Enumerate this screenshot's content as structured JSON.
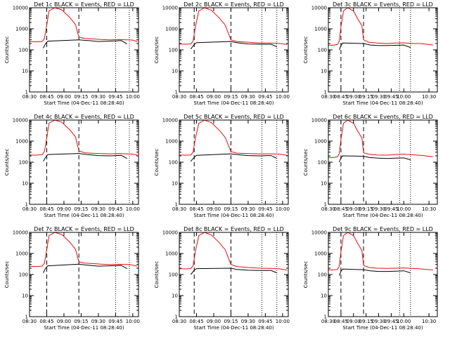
{
  "chart_data": [
    {
      "type": "line",
      "title": "Det 1c BLACK = Events, RED = LLD",
      "xlabel": "Start Time (04-Dec-11 08:28:40)",
      "ylabel": "Counts/sec",
      "yscale": "log",
      "ylim": [
        1,
        10000
      ],
      "xlim": [
        "08:30",
        "10:05"
      ],
      "x_ticks": [
        "08:30",
        "08:45",
        "09:00",
        "09:15",
        "09:30",
        "09:45",
        "10:00"
      ],
      "y_ticks": [
        "1",
        "10",
        "100",
        "1000",
        "10000"
      ],
      "vlines": [
        {
          "x": "08:45",
          "style": "dash"
        },
        {
          "x": "09:13",
          "style": "dash"
        },
        {
          "x": "09:45",
          "style": "dot"
        },
        {
          "x": "09:57",
          "style": "dot"
        }
      ],
      "series": [
        {
          "name": "Events",
          "color": "#000000",
          "x": [
            "08:42",
            "08:44",
            "08:46",
            "09:13",
            "09:20",
            "09:30",
            "09:40",
            "09:50",
            "09:55"
          ],
          "y": [
            120,
            200,
            260,
            300,
            280,
            250,
            260,
            275,
            190
          ]
        },
        {
          "name": "LLD",
          "color": "#e01010",
          "x": [
            "08:30",
            "08:35",
            "08:41",
            "08:43",
            "08:45",
            "08:47",
            "08:52",
            "08:58",
            "09:05",
            "09:10",
            "09:13",
            "09:18",
            "09:25",
            "09:32",
            "09:40",
            "09:48",
            "09:55",
            "10:00",
            "10:04"
          ],
          "y": [
            250,
            240,
            250,
            350,
            1500,
            7000,
            10000,
            8000,
            3500,
            1600,
            400,
            350,
            330,
            310,
            300,
            310,
            300,
            290,
            250
          ]
        }
      ]
    },
    {
      "type": "line",
      "title": "Det 2c BLACK = Events, RED = LLD",
      "xlabel": "Start Time (04-Dec-11 08:28:40)",
      "ylabel": "Counts/sec",
      "yscale": "log",
      "ylim": [
        1,
        10000
      ],
      "xlim": [
        "08:30",
        "10:05"
      ],
      "x_ticks": [
        "08:30",
        "08:45",
        "09:00",
        "09:15",
        "09:30",
        "09:45",
        "10:00"
      ],
      "y_ticks": [
        "1",
        "10",
        "100",
        "1000",
        "10000"
      ],
      "vlines": [
        {
          "x": "08:43",
          "style": "dash"
        },
        {
          "x": "09:15",
          "style": "dash"
        },
        {
          "x": "09:42",
          "style": "dot"
        },
        {
          "x": "09:55",
          "style": "dot"
        }
      ],
      "series": [
        {
          "name": "Events",
          "color": "#000000",
          "x": [
            "08:40",
            "08:43",
            "08:45",
            "09:15",
            "09:20",
            "09:30",
            "09:40",
            "09:50",
            "09:55"
          ],
          "y": [
            110,
            180,
            220,
            250,
            220,
            190,
            185,
            185,
            140
          ]
        },
        {
          "name": "LLD",
          "color": "#e01010",
          "x": [
            "08:30",
            "08:35",
            "08:40",
            "08:42",
            "08:44",
            "08:47",
            "08:52",
            "08:58",
            "09:05",
            "09:10",
            "09:15",
            "09:20",
            "09:30",
            "09:40",
            "09:50",
            "09:58",
            "10:04"
          ],
          "y": [
            190,
            185,
            190,
            260,
            1200,
            7000,
            10000,
            7500,
            3200,
            1500,
            300,
            250,
            230,
            210,
            210,
            200,
            180
          ]
        }
      ]
    },
    {
      "type": "line",
      "title": "Det 3c BLACK = Events, RED = LLD",
      "xlabel": "Start Time (04-Dec-11 08:28:40)",
      "ylabel": "Counts/sec",
      "yscale": "log",
      "ylim": [
        1,
        10000
      ],
      "xlim": [
        "08:30",
        "10:40"
      ],
      "x_ticks": [
        "08:30",
        "08:45",
        "09:00",
        "09:15",
        "09:30",
        "09:45",
        "10:00",
        "10:30"
      ],
      "y_ticks": [
        "1",
        "10",
        "100",
        "1000",
        "10000"
      ],
      "vlines": [
        {
          "x": "08:45",
          "style": "dash"
        },
        {
          "x": "09:12",
          "style": "dash"
        },
        {
          "x": "09:55",
          "style": "dot"
        },
        {
          "x": "10:08",
          "style": "dot"
        }
      ],
      "series": [
        {
          "name": "Events",
          "color": "#000000",
          "x": [
            "08:43",
            "08:45",
            "08:47",
            "09:12",
            "09:20",
            "09:30",
            "09:40",
            "09:50",
            "10:00",
            "10:08"
          ],
          "y": [
            100,
            160,
            210,
            200,
            170,
            160,
            160,
            165,
            170,
            130
          ]
        },
        {
          "name": "LLD",
          "color": "#e01010",
          "x": [
            "08:30",
            "08:35",
            "08:41",
            "08:43",
            "08:45",
            "08:48",
            "08:53",
            "09:00",
            "09:05",
            "09:10",
            "09:12",
            "09:18",
            "09:28",
            "09:40",
            "09:50",
            "10:00",
            "10:10",
            "10:20",
            "10:35"
          ],
          "y": [
            170,
            165,
            180,
            260,
            1200,
            7000,
            10000,
            7000,
            3000,
            1400,
            300,
            230,
            210,
            200,
            210,
            215,
            200,
            200,
            170
          ]
        }
      ]
    },
    {
      "type": "line",
      "title": "Det 4c BLACK = Events, RED = LLD",
      "xlabel": "Start Time (04-Dec-11 08:28:40)",
      "ylabel": "Counts/sec",
      "yscale": "log",
      "ylim": [
        1,
        10000
      ],
      "xlim": [
        "08:30",
        "10:05"
      ],
      "x_ticks": [
        "08:30",
        "08:45",
        "09:00",
        "09:15",
        "09:30",
        "09:45",
        "10:00"
      ],
      "y_ticks": [
        "1",
        "10",
        "100",
        "1000",
        "10000"
      ],
      "vlines": [
        {
          "x": "08:45",
          "style": "dash"
        },
        {
          "x": "09:13",
          "style": "dash"
        },
        {
          "x": "09:45",
          "style": "dot"
        },
        {
          "x": "09:57",
          "style": "dot"
        }
      ],
      "series": [
        {
          "name": "Events",
          "color": "#000000",
          "x": [
            "08:42",
            "08:44",
            "08:46",
            "09:13",
            "09:20",
            "09:30",
            "09:40",
            "09:50",
            "09:55"
          ],
          "y": [
            110,
            170,
            230,
            260,
            230,
            205,
            200,
            210,
            150
          ]
        },
        {
          "name": "LLD",
          "color": "#e01010",
          "x": [
            "08:30",
            "08:35",
            "08:41",
            "08:43",
            "08:45",
            "08:47",
            "08:52",
            "08:58",
            "09:05",
            "09:10",
            "09:13",
            "09:18",
            "09:25",
            "09:32",
            "09:40",
            "09:48",
            "09:55",
            "10:00",
            "10:04"
          ],
          "y": [
            220,
            215,
            225,
            320,
            1400,
            7000,
            10000,
            8000,
            3500,
            1600,
            350,
            280,
            265,
            255,
            250,
            255,
            250,
            240,
            220
          ]
        }
      ]
    },
    {
      "type": "line",
      "title": "Det 5c BLACK = Events, RED = LLD",
      "xlabel": "Start Time (04-Dec-11 08:28:40)",
      "ylabel": "Counts/sec",
      "yscale": "log",
      "ylim": [
        1,
        10000
      ],
      "xlim": [
        "08:30",
        "10:05"
      ],
      "x_ticks": [
        "08:30",
        "08:45",
        "09:00",
        "09:15",
        "09:30",
        "09:45",
        "10:00"
      ],
      "y_ticks": [
        "1",
        "10",
        "100",
        "1000",
        "10000"
      ],
      "vlines": [
        {
          "x": "08:43",
          "style": "dash"
        },
        {
          "x": "09:15",
          "style": "dash"
        },
        {
          "x": "09:42",
          "style": "dot"
        },
        {
          "x": "09:55",
          "style": "dot"
        }
      ],
      "series": [
        {
          "name": "Events",
          "color": "#000000",
          "x": [
            "08:40",
            "08:43",
            "08:45",
            "09:15",
            "09:20",
            "09:30",
            "09:40",
            "09:50",
            "09:55"
          ],
          "y": [
            110,
            170,
            210,
            250,
            230,
            205,
            200,
            205,
            150
          ]
        },
        {
          "name": "LLD",
          "color": "#e01010",
          "x": [
            "08:30",
            "08:35",
            "08:40",
            "08:42",
            "08:44",
            "08:47",
            "08:52",
            "08:58",
            "09:05",
            "09:10",
            "09:15",
            "09:20",
            "09:30",
            "09:40",
            "09:50",
            "09:58",
            "10:04"
          ],
          "y": [
            220,
            215,
            220,
            300,
            1300,
            7000,
            10000,
            7500,
            3200,
            1500,
            320,
            270,
            255,
            245,
            250,
            240,
            210
          ]
        }
      ]
    },
    {
      "type": "line",
      "title": "Det 6c BLACK = Events, RED = LLD",
      "xlabel": "Start Time (04-Dec-11 08:28:40)",
      "ylabel": "Counts/sec",
      "yscale": "log",
      "ylim": [
        1,
        10000
      ],
      "xlim": [
        "08:30",
        "10:40"
      ],
      "x_ticks": [
        "08:30",
        "08:45",
        "09:00",
        "09:15",
        "09:30",
        "09:45",
        "10:00",
        "10:30"
      ],
      "y_ticks": [
        "1",
        "10",
        "100",
        "1000",
        "10000"
      ],
      "vlines": [
        {
          "x": "08:45",
          "style": "dash"
        },
        {
          "x": "09:12",
          "style": "dash"
        },
        {
          "x": "09:55",
          "style": "dot"
        },
        {
          "x": "10:08",
          "style": "dot"
        }
      ],
      "series": [
        {
          "name": "Events",
          "color": "#000000",
          "x": [
            "08:43",
            "08:45",
            "08:47",
            "09:12",
            "09:20",
            "09:30",
            "09:40",
            "09:50",
            "10:00",
            "10:08"
          ],
          "y": [
            100,
            160,
            200,
            190,
            165,
            155,
            150,
            155,
            160,
            130
          ]
        },
        {
          "name": "LLD",
          "color": "#e01010",
          "x": [
            "08:30",
            "08:35",
            "08:41",
            "08:43",
            "08:45",
            "08:48",
            "08:53",
            "09:00",
            "09:05",
            "09:10",
            "09:12",
            "09:18",
            "09:28",
            "09:40",
            "09:50",
            "10:00",
            "10:10",
            "10:20",
            "10:35"
          ],
          "y": [
            170,
            165,
            180,
            260,
            1200,
            7000,
            10000,
            7000,
            3000,
            1400,
            280,
            240,
            220,
            215,
            230,
            240,
            225,
            210,
            180
          ]
        }
      ]
    },
    {
      "type": "line",
      "title": "Det 7c BLACK = Events, RED = LLD",
      "xlabel": "Start Time (04-Dec-11 08:28:40)",
      "ylabel": "Counts/sec",
      "yscale": "log",
      "ylim": [
        1,
        10000
      ],
      "xlim": [
        "08:30",
        "10:05"
      ],
      "x_ticks": [
        "08:30",
        "08:45",
        "09:00",
        "09:15",
        "09:30",
        "09:45",
        "10:00"
      ],
      "y_ticks": [
        "1",
        "10",
        "100",
        "1000",
        "10000"
      ],
      "vlines": [
        {
          "x": "08:45",
          "style": "dash"
        },
        {
          "x": "09:13",
          "style": "dash"
        },
        {
          "x": "09:45",
          "style": "dot"
        },
        {
          "x": "09:57",
          "style": "dot"
        }
      ],
      "series": [
        {
          "name": "Events",
          "color": "#000000",
          "x": [
            "08:42",
            "08:44",
            "08:46",
            "09:13",
            "09:20",
            "09:30",
            "09:40",
            "09:50",
            "09:55"
          ],
          "y": [
            120,
            200,
            260,
            310,
            280,
            250,
            260,
            270,
            190
          ]
        },
        {
          "name": "LLD",
          "color": "#e01010",
          "x": [
            "08:30",
            "08:35",
            "08:41",
            "08:43",
            "08:45",
            "08:47",
            "08:52",
            "08:58",
            "09:05",
            "09:10",
            "09:13",
            "09:18",
            "09:25",
            "09:32",
            "09:40",
            "09:48",
            "09:55",
            "10:00",
            "10:04"
          ],
          "y": [
            250,
            240,
            250,
            350,
            1500,
            7000,
            10000,
            8000,
            3500,
            1600,
            400,
            350,
            330,
            310,
            300,
            305,
            300,
            280,
            250
          ]
        }
      ]
    },
    {
      "type": "line",
      "title": "Det 8c BLACK = Events, RED = LLD",
      "xlabel": "Start Time (04-Dec-11 08:28:40)",
      "ylabel": "Counts/sec",
      "yscale": "log",
      "ylim": [
        1,
        10000
      ],
      "xlim": [
        "08:30",
        "10:05"
      ],
      "x_ticks": [
        "08:30",
        "08:45",
        "09:00",
        "09:15",
        "09:30",
        "09:45",
        "10:00"
      ],
      "y_ticks": [
        "1",
        "10",
        "100",
        "1000",
        "10000"
      ],
      "vlines": [
        {
          "x": "08:43",
          "style": "dash"
        },
        {
          "x": "09:15",
          "style": "dash"
        },
        {
          "x": "09:42",
          "style": "dot"
        },
        {
          "x": "09:55",
          "style": "dot"
        }
      ],
      "series": [
        {
          "name": "Events",
          "color": "#000000",
          "x": [
            "08:40",
            "08:43",
            "08:45",
            "09:15",
            "09:20",
            "09:30",
            "09:40",
            "09:50",
            "09:55"
          ],
          "y": [
            100,
            160,
            190,
            200,
            175,
            160,
            155,
            155,
            120
          ]
        },
        {
          "name": "LLD",
          "color": "#e01010",
          "x": [
            "08:30",
            "08:35",
            "08:40",
            "08:42",
            "08:44",
            "08:47",
            "08:52",
            "08:58",
            "09:05",
            "09:10",
            "09:15",
            "09:20",
            "09:30",
            "09:40",
            "09:50",
            "09:58",
            "10:04"
          ],
          "y": [
            190,
            185,
            190,
            260,
            1200,
            7000,
            10000,
            7500,
            3200,
            1500,
            300,
            240,
            215,
            200,
            195,
            185,
            160
          ]
        }
      ]
    },
    {
      "type": "line",
      "title": "Det 9c BLACK = Events, RED = LLD",
      "xlabel": "Start Time (04-Dec-11 08:28:40)",
      "ylabel": "Counts/sec",
      "yscale": "log",
      "ylim": [
        1,
        10000
      ],
      "xlim": [
        "08:30",
        "10:40"
      ],
      "x_ticks": [
        "08:30",
        "08:45",
        "09:00",
        "09:15",
        "09:30",
        "09:45",
        "10:00",
        "10:30"
      ],
      "y_ticks": [
        "1",
        "10",
        "100",
        "1000",
        "10000"
      ],
      "vlines": [
        {
          "x": "08:45",
          "style": "dash"
        },
        {
          "x": "09:12",
          "style": "dash"
        },
        {
          "x": "09:55",
          "style": "dot"
        },
        {
          "x": "10:08",
          "style": "dot"
        }
      ],
      "series": [
        {
          "name": "Events",
          "color": "#000000",
          "x": [
            "08:43",
            "08:45",
            "08:47",
            "09:12",
            "09:20",
            "09:30",
            "09:40",
            "09:50",
            "10:00",
            "10:08"
          ],
          "y": [
            90,
            140,
            180,
            170,
            150,
            140,
            140,
            145,
            150,
            120
          ]
        },
        {
          "name": "LLD",
          "color": "#e01010",
          "x": [
            "08:30",
            "08:35",
            "08:41",
            "08:43",
            "08:45",
            "08:48",
            "08:53",
            "09:00",
            "09:05",
            "09:10",
            "09:12",
            "09:18",
            "09:28",
            "09:40",
            "09:50",
            "10:00",
            "10:10",
            "10:20",
            "10:35"
          ],
          "y": [
            170,
            165,
            175,
            250,
            1200,
            7000,
            10000,
            7000,
            3000,
            1400,
            270,
            220,
            200,
            195,
            200,
            205,
            195,
            185,
            165
          ]
        }
      ]
    }
  ]
}
